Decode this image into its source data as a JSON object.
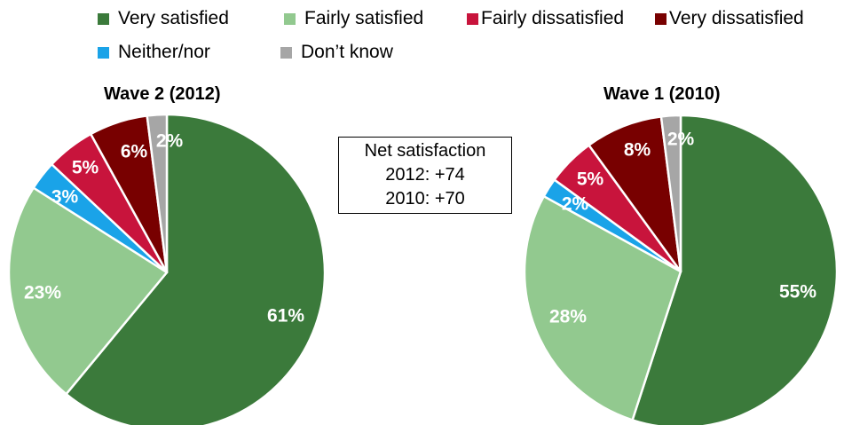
{
  "legend": [
    {
      "label": "Very satisfied",
      "color": "#3b7a3b"
    },
    {
      "label": "Fairly satisfied",
      "color": "#92c98f"
    },
    {
      "label": "Fairly dissatisfied",
      "color": "#c8143c"
    },
    {
      "label": "Very dissatisfied",
      "color": "#780000"
    },
    {
      "label": "Neither/nor",
      "color": "#1aa3e8"
    },
    {
      "label": "Don’t know",
      "color": "#a6a6a6"
    }
  ],
  "net_box": {
    "title": "Net satisfaction",
    "line1": "2012: +74",
    "line2": "2010: +70"
  },
  "chart_data": [
    {
      "type": "pie",
      "title": "Wave 2 (2012)",
      "slices": [
        {
          "category": "Very satisfied",
          "value": 61,
          "label": "61%",
          "color": "#3b7a3b"
        },
        {
          "category": "Fairly satisfied",
          "value": 23,
          "label": "23%",
          "color": "#92c98f"
        },
        {
          "category": "Neither/nor",
          "value": 3,
          "label": "3%",
          "color": "#1aa3e8"
        },
        {
          "category": "Fairly dissatisfied",
          "value": 5,
          "label": "5%",
          "color": "#c8143c"
        },
        {
          "category": "Very dissatisfied",
          "value": 6,
          "label": "6%",
          "color": "#780000"
        },
        {
          "category": "Don’t know",
          "value": 2,
          "label": "2%",
          "color": "#a6a6a6"
        }
      ]
    },
    {
      "type": "pie",
      "title": "Wave 1 (2010)",
      "slices": [
        {
          "category": "Very satisfied",
          "value": 55,
          "label": "55%",
          "color": "#3b7a3b"
        },
        {
          "category": "Fairly satisfied",
          "value": 28,
          "label": "28%",
          "color": "#92c98f"
        },
        {
          "category": "Neither/nor",
          "value": 2,
          "label": "2%",
          "color": "#1aa3e8"
        },
        {
          "category": "Fairly dissatisfied",
          "value": 5,
          "label": "5%",
          "color": "#c8143c"
        },
        {
          "category": "Very dissatisfied",
          "value": 8,
          "label": "8%",
          "color": "#780000"
        },
        {
          "category": "Don’t know",
          "value": 2,
          "label": "2%",
          "color": "#a6a6a6"
        }
      ]
    }
  ]
}
